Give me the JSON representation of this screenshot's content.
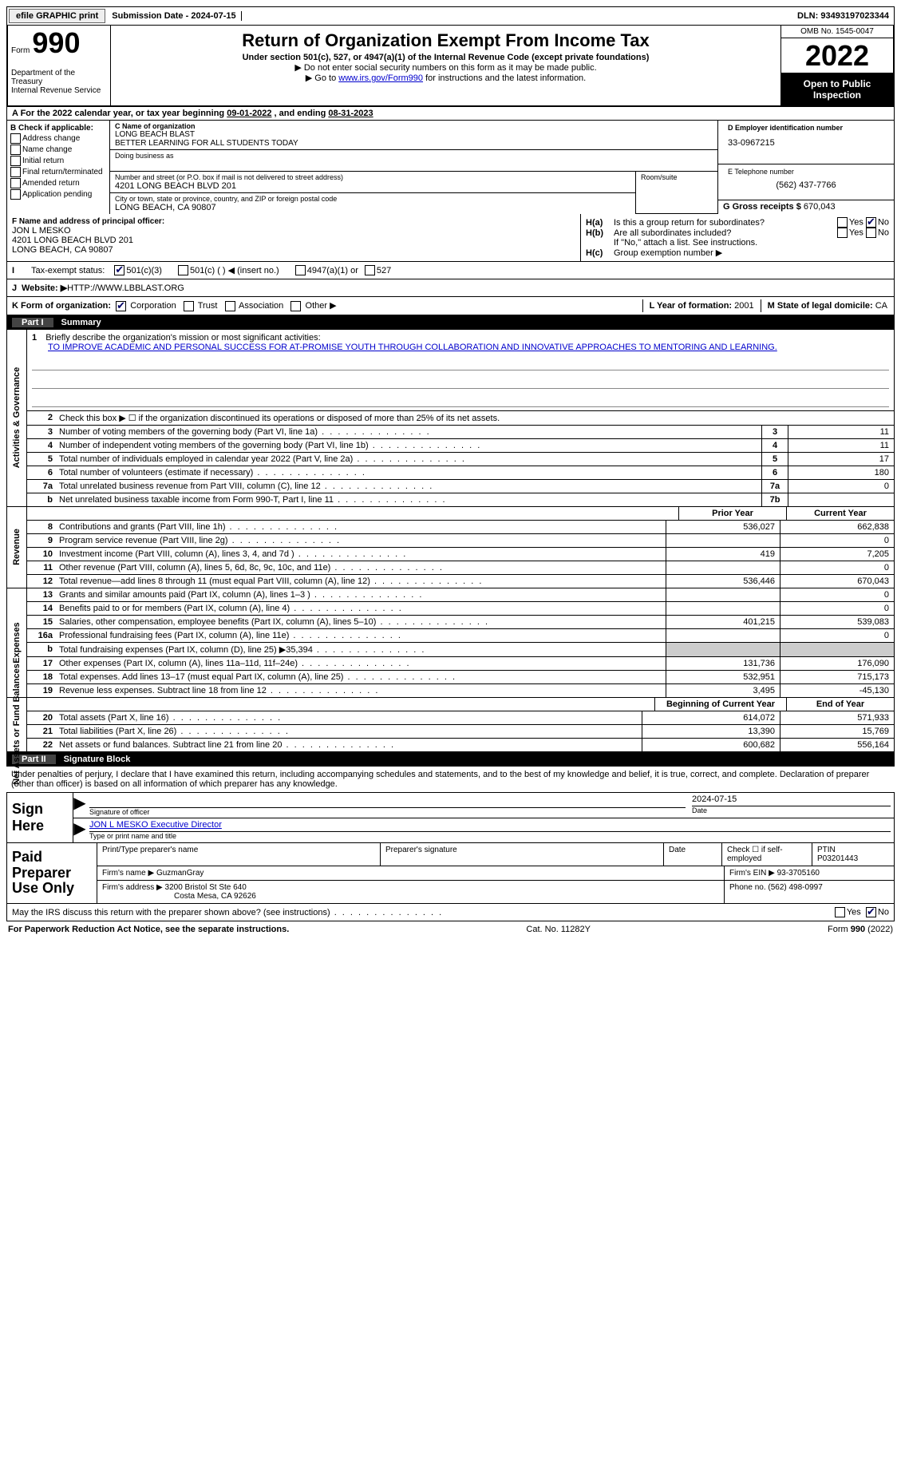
{
  "top": {
    "efile_btn": "efile GRAPHIC print",
    "sub_date_label": "Submission Date - ",
    "sub_date": "2024-07-15",
    "dln_label": "DLN: ",
    "dln": "93493197023344"
  },
  "header": {
    "form_label": "Form",
    "form_number": "990",
    "title": "Return of Organization Exempt From Income Tax",
    "subtitle": "Under section 501(c), 527, or 4947(a)(1) of the Internal Revenue Code (except private foundations)",
    "note1": "▶ Do not enter social security numbers on this form as it may be made public.",
    "note2_pre": "▶ Go to ",
    "note2_link": "www.irs.gov/Form990",
    "note2_post": " for instructions and the latest information.",
    "dept": "Department of the Treasury\nInternal Revenue Service",
    "omb": "OMB No. 1545-0047",
    "year": "2022",
    "inspect": "Open to Public Inspection"
  },
  "row_a": {
    "text": "A For the 2022 calendar year, or tax year beginning ",
    "begin": "09-01-2022",
    "mid": "   , and ending ",
    "end": "08-31-2023"
  },
  "col_b": {
    "label": "B Check if applicable:",
    "items": [
      "Address change",
      "Name change",
      "Initial return",
      "Final return/terminated",
      "Amended return",
      "Application pending"
    ]
  },
  "col_c": {
    "name_label": "C Name of organization",
    "name1": "LONG BEACH BLAST",
    "name2": "BETTER LEARNING FOR ALL STUDENTS TODAY",
    "dba_label": "Doing business as",
    "addr_label": "Number and street (or P.O. box if mail is not delivered to street address)",
    "addr": "4201 LONG BEACH BLVD 201",
    "room_label": "Room/suite",
    "city_label": "City or town, state or province, country, and ZIP or foreign postal code",
    "city": "LONG BEACH, CA   90807"
  },
  "col_d": {
    "ein_label": "D Employer identification number",
    "ein": "33-0967215",
    "tel_label": "E Telephone number",
    "tel": "(562) 437-7766",
    "gross_label": "G Gross receipts $ ",
    "gross": "670,043"
  },
  "sec_f": {
    "label": "F Name and address of principal officer:",
    "name": "JON L MESKO",
    "addr1": "4201 LONG BEACH BLVD 201",
    "addr2": "LONG BEACH, CA   90807"
  },
  "sec_h": {
    "a_lbl": "H(a)",
    "a_txt": "Is this a group return for subordinates?",
    "a_yes": "Yes",
    "a_no": "No",
    "b_lbl": "H(b)",
    "b_txt": "Are all subordinates included?",
    "b_note": "If \"No,\" attach a list. See instructions.",
    "c_lbl": "H(c)",
    "c_txt": "Group exemption number ▶"
  },
  "row_i": {
    "label": "I",
    "txt": "Tax-exempt status:",
    "opt1": "501(c)(3)",
    "opt2": "501(c) (   ) ◀ (insert no.)",
    "opt3": "4947(a)(1) or",
    "opt4": "527"
  },
  "row_j": {
    "label": "J",
    "txt": "Website: ▶  ",
    "url": "HTTP://WWW.LBBLAST.ORG"
  },
  "row_k": {
    "label": "K Form of organization:",
    "opts": [
      "Corporation",
      "Trust",
      "Association",
      "Other ▶"
    ]
  },
  "row_lm": {
    "l_label": "L Year of formation: ",
    "l_val": "2001",
    "m_label": "M State of legal domicile: ",
    "m_val": "CA"
  },
  "part1": {
    "num": "Part I",
    "title": "Summary"
  },
  "mission": {
    "num": "1",
    "label": "Briefly describe the organization's mission or most significant activities:",
    "text": "TO IMPROVE ACADEMIC AND PERSONAL SUCCESS FOR AT-PROMISE YOUTH THROUGH COLLABORATION AND INNOVATIVE APPROACHES TO MENTORING AND LEARNING."
  },
  "line2": {
    "num": "2",
    "txt": "Check this box ▶ ☐ if the organization discontinued its operations or disposed of more than 25% of its net assets."
  },
  "gov_rows": [
    {
      "num": "3",
      "txt": "Number of voting members of the governing body (Part VI, line 1a)",
      "box": "3",
      "val": "11"
    },
    {
      "num": "4",
      "txt": "Number of independent voting members of the governing body (Part VI, line 1b)",
      "box": "4",
      "val": "11"
    },
    {
      "num": "5",
      "txt": "Total number of individuals employed in calendar year 2022 (Part V, line 2a)",
      "box": "5",
      "val": "17"
    },
    {
      "num": "6",
      "txt": "Total number of volunteers (estimate if necessary)",
      "box": "6",
      "val": "180"
    },
    {
      "num": "7a",
      "txt": "Total unrelated business revenue from Part VIII, column (C), line 12",
      "box": "7a",
      "val": "0"
    },
    {
      "num": "b",
      "txt": "Net unrelated business taxable income from Form 990-T, Part I, line 11",
      "box": "7b",
      "val": ""
    }
  ],
  "side_labels": {
    "gov": "Activities & Governance",
    "rev": "Revenue",
    "exp": "Expenses",
    "net": "Net Assets or Fund Balances"
  },
  "year_hdr": {
    "py": "Prior Year",
    "cy": "Current Year",
    "bcy": "Beginning of Current Year",
    "eoy": "End of Year"
  },
  "rev_rows": [
    {
      "num": "8",
      "txt": "Contributions and grants (Part VIII, line 1h)",
      "py": "536,027",
      "cy": "662,838"
    },
    {
      "num": "9",
      "txt": "Program service revenue (Part VIII, line 2g)",
      "py": "",
      "cy": "0"
    },
    {
      "num": "10",
      "txt": "Investment income (Part VIII, column (A), lines 3, 4, and 7d )",
      "py": "419",
      "cy": "7,205"
    },
    {
      "num": "11",
      "txt": "Other revenue (Part VIII, column (A), lines 5, 6d, 8c, 9c, 10c, and 11e)",
      "py": "",
      "cy": "0"
    },
    {
      "num": "12",
      "txt": "Total revenue—add lines 8 through 11 (must equal Part VIII, column (A), line 12)",
      "py": "536,446",
      "cy": "670,043"
    }
  ],
  "exp_rows": [
    {
      "num": "13",
      "txt": "Grants and similar amounts paid (Part IX, column (A), lines 1–3 )",
      "py": "",
      "cy": "0"
    },
    {
      "num": "14",
      "txt": "Benefits paid to or for members (Part IX, column (A), line 4)",
      "py": "",
      "cy": "0"
    },
    {
      "num": "15",
      "txt": "Salaries, other compensation, employee benefits (Part IX, column (A), lines 5–10)",
      "py": "401,215",
      "cy": "539,083"
    },
    {
      "num": "16a",
      "txt": "Professional fundraising fees (Part IX, column (A), line 11e)",
      "py": "",
      "cy": "0"
    },
    {
      "num": "b",
      "txt": "Total fundraising expenses (Part IX, column (D), line 25) ▶35,394",
      "py": "shaded",
      "cy": "shaded"
    },
    {
      "num": "17",
      "txt": "Other expenses (Part IX, column (A), lines 11a–11d, 11f–24e)",
      "py": "131,736",
      "cy": "176,090"
    },
    {
      "num": "18",
      "txt": "Total expenses. Add lines 13–17 (must equal Part IX, column (A), line 25)",
      "py": "532,951",
      "cy": "715,173"
    },
    {
      "num": "19",
      "txt": "Revenue less expenses. Subtract line 18 from line 12",
      "py": "3,495",
      "cy": "-45,130"
    }
  ],
  "net_rows": [
    {
      "num": "20",
      "txt": "Total assets (Part X, line 16)",
      "py": "614,072",
      "cy": "571,933"
    },
    {
      "num": "21",
      "txt": "Total liabilities (Part X, line 26)",
      "py": "13,390",
      "cy": "15,769"
    },
    {
      "num": "22",
      "txt": "Net assets or fund balances. Subtract line 21 from line 20",
      "py": "600,682",
      "cy": "556,164"
    }
  ],
  "part2": {
    "num": "Part II",
    "title": "Signature Block"
  },
  "sig_decl": "Under penalties of perjury, I declare that I have examined this return, including accompanying schedules and statements, and to the best of my knowledge and belief, it is true, correct, and complete. Declaration of preparer (other than officer) is based on all information of which preparer has any knowledge.",
  "sign": {
    "left": "Sign Here",
    "sig_lbl": "Signature of officer",
    "date": "2024-07-15",
    "date_lbl": "Date",
    "name": "JON L MESKO  Executive Director",
    "name_lbl": "Type or print name and title"
  },
  "prep": {
    "left": "Paid Preparer Use Only",
    "r1": {
      "c1": "Print/Type preparer's name",
      "c2": "Preparer's signature",
      "c3": "Date",
      "c4": "Check ☐ if self-employed",
      "c5_lbl": "PTIN",
      "c5": "P03201443"
    },
    "r2": {
      "lbl": "Firm's name    ▶ ",
      "val": "GuzmanGray",
      "ein_lbl": "Firm's EIN ▶ ",
      "ein": "93-3705160"
    },
    "r3": {
      "lbl": "Firm's address ▶ ",
      "val1": "3200 Bristol St Ste 640",
      "val2": "Costa Mesa, CA   92626",
      "ph_lbl": "Phone no. ",
      "ph": "(562) 498-0997"
    }
  },
  "discuss": {
    "txt": "May the IRS discuss this return with the preparer shown above? (see instructions)",
    "yes": "Yes",
    "no": "No"
  },
  "footer": {
    "pra": "For Paperwork Reduction Act Notice, see the separate instructions.",
    "cat": "Cat. No. 11282Y",
    "form": "Form 990 (2022)"
  }
}
